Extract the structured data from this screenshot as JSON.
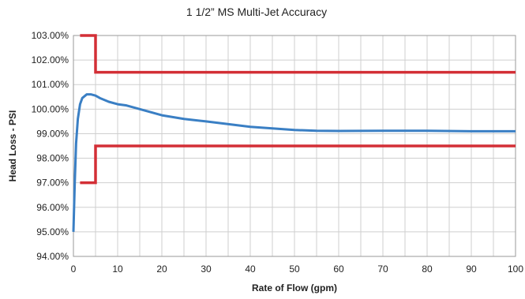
{
  "chart_data": {
    "type": "line",
    "title": "1 1/2” MS Multi-Jet Accuracy",
    "xlabel": "Rate of Flow (gpm)",
    "ylabel": "Head Loss - PSI",
    "xlim": [
      0,
      100
    ],
    "ylim": [
      94,
      103
    ],
    "x_ticks": [
      "0",
      "10",
      "20",
      "30",
      "40",
      "50",
      "60",
      "70",
      "80",
      "90",
      "100"
    ],
    "y_ticks": [
      "94.00%",
      "95.00%",
      "96.00%",
      "97.00%",
      "98.00%",
      "99.00%",
      "100.00%",
      "101.00%",
      "102.00%",
      "103.00%"
    ],
    "grid": true,
    "colors": {
      "accuracy": "#3a7fc4",
      "limits": "#d32f36"
    },
    "series": [
      {
        "role": "accuracy",
        "x": [
          0,
          0.3,
          0.6,
          1,
          1.5,
          2,
          3,
          4,
          5,
          6,
          8,
          10,
          12,
          15,
          20,
          25,
          30,
          40,
          50,
          55,
          60,
          70,
          80,
          90,
          100
        ],
        "y": [
          95.0,
          97.0,
          98.6,
          99.6,
          100.2,
          100.45,
          100.6,
          100.6,
          100.55,
          100.45,
          100.3,
          100.2,
          100.15,
          100.0,
          99.75,
          99.6,
          99.5,
          99.28,
          99.15,
          99.12,
          99.11,
          99.12,
          99.12,
          99.1,
          99.1
        ]
      },
      {
        "role": "upper-limit",
        "x": [
          1.5,
          5,
          5,
          100
        ],
        "y": [
          103.0,
          103.0,
          101.5,
          101.5
        ]
      },
      {
        "role": "lower-limit",
        "x": [
          1.5,
          5,
          5,
          100
        ],
        "y": [
          97.0,
          97.0,
          98.5,
          98.5
        ]
      }
    ]
  }
}
